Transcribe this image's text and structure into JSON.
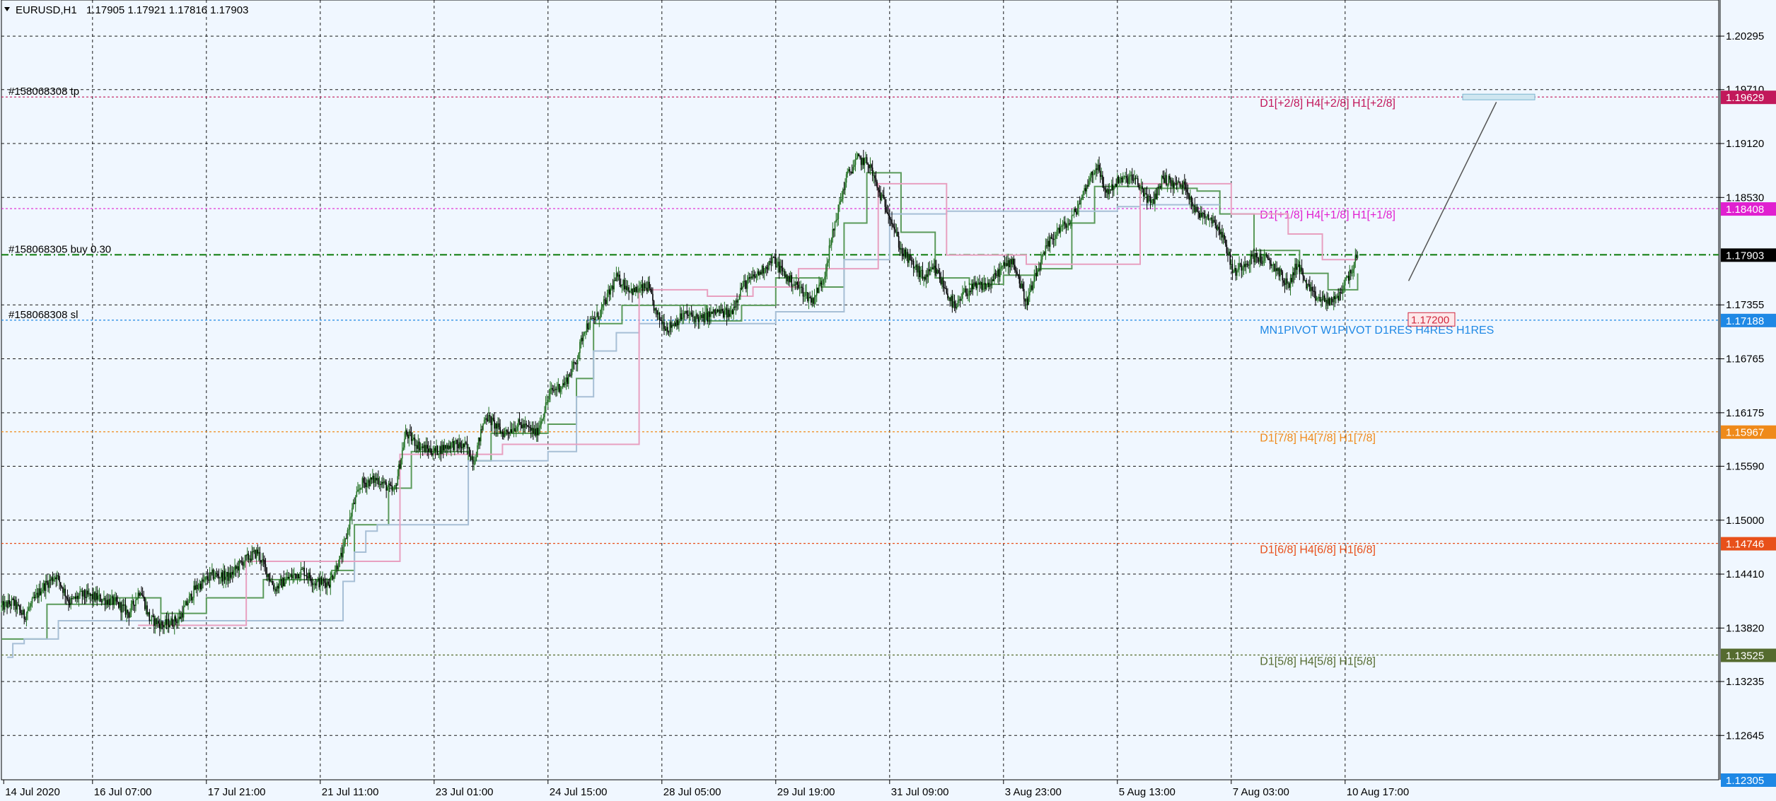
{
  "header": {
    "symbol": "EURUSD,H1",
    "ohlc": "1.17905 1.17921 1.17816 1.17903"
  },
  "colors": {
    "background": "#f0f7ff",
    "up_candle": "#1f6f1f",
    "down_candle": "#000000",
    "grid": "#000000",
    "axis_text": "#000000"
  },
  "chart_data": {
    "type": "candlestick",
    "symbol": "EURUSD",
    "timeframe": "H1",
    "ylim": [
      1.1216,
      1.2069
    ],
    "x_range": [
      0,
      1214
    ],
    "grid": true,
    "y_ticks": [
      "1.20295",
      "1.19710",
      "1.19120",
      "1.18530",
      "1.17355",
      "1.16765",
      "1.16175",
      "1.15590",
      "1.15000",
      "1.14410",
      "1.13820",
      "1.13235",
      "1.12645"
    ],
    "x_ticks": [
      {
        "x": 2,
        "label": "14 Jul 2020"
      },
      {
        "x": 80,
        "label": "16 Jul 07:00"
      },
      {
        "x": 180,
        "label": "17 Jul 21:00"
      },
      {
        "x": 280,
        "label": "21 Jul 11:00"
      },
      {
        "x": 380,
        "label": "23 Jul 01:00"
      },
      {
        "x": 480,
        "label": "24 Jul 15:00"
      },
      {
        "x": 580,
        "label": "28 Jul 05:00"
      },
      {
        "x": 680,
        "label": "29 Jul 19:00"
      },
      {
        "x": 780,
        "label": "31 Jul 09:00"
      },
      {
        "x": 880,
        "label": "3 Aug 23:00"
      },
      {
        "x": 980,
        "label": "5 Aug 13:00"
      },
      {
        "x": 1080,
        "label": "7 Aug 03:00"
      },
      {
        "x": 1180,
        "label": "10 Aug 17:00"
      }
    ],
    "close_path": [
      [
        0,
        1.1405
      ],
      [
        10,
        1.141
      ],
      [
        20,
        1.1395
      ],
      [
        35,
        1.1425
      ],
      [
        48,
        1.144
      ],
      [
        60,
        1.141
      ],
      [
        70,
        1.1418
      ],
      [
        85,
        1.1415
      ],
      [
        100,
        1.141
      ],
      [
        112,
        1.1398
      ],
      [
        122,
        1.1425
      ],
      [
        130,
        1.1392
      ],
      [
        142,
        1.1385
      ],
      [
        156,
        1.1392
      ],
      [
        170,
        1.1425
      ],
      [
        185,
        1.144
      ],
      [
        200,
        1.1438
      ],
      [
        212,
        1.1455
      ],
      [
        225,
        1.1465
      ],
      [
        240,
        1.1425
      ],
      [
        250,
        1.1435
      ],
      [
        265,
        1.1445
      ],
      [
        275,
        1.1432
      ],
      [
        288,
        1.1432
      ],
      [
        300,
        1.1465
      ],
      [
        308,
        1.1512
      ],
      [
        316,
        1.154
      ],
      [
        330,
        1.1545
      ],
      [
        345,
        1.153
      ],
      [
        355,
        1.1595
      ],
      [
        368,
        1.158
      ],
      [
        380,
        1.1575
      ],
      [
        395,
        1.1583
      ],
      [
        408,
        1.158
      ],
      [
        415,
        1.1565
      ],
      [
        425,
        1.1615
      ],
      [
        440,
        1.1595
      ],
      [
        455,
        1.1605
      ],
      [
        470,
        1.1595
      ],
      [
        482,
        1.164
      ],
      [
        495,
        1.165
      ],
      [
        505,
        1.1675
      ],
      [
        512,
        1.171
      ],
      [
        525,
        1.1725
      ],
      [
        540,
        1.1765
      ],
      [
        555,
        1.175
      ],
      [
        568,
        1.1755
      ],
      [
        575,
        1.1725
      ],
      [
        585,
        1.171
      ],
      [
        600,
        1.1725
      ],
      [
        615,
        1.172
      ],
      [
        628,
        1.1728
      ],
      [
        640,
        1.1725
      ],
      [
        650,
        1.1755
      ],
      [
        665,
        1.177
      ],
      [
        678,
        1.1785
      ],
      [
        690,
        1.1765
      ],
      [
        700,
        1.1755
      ],
      [
        712,
        1.174
      ],
      [
        722,
        1.1765
      ],
      [
        732,
        1.1825
      ],
      [
        742,
        1.1875
      ],
      [
        752,
        1.1895
      ],
      [
        762,
        1.189
      ],
      [
        770,
        1.186
      ],
      [
        780,
        1.1835
      ],
      [
        790,
        1.1795
      ],
      [
        800,
        1.178
      ],
      [
        810,
        1.1765
      ],
      [
        820,
        1.1775
      ],
      [
        828,
        1.1755
      ],
      [
        838,
        1.173
      ],
      [
        845,
        1.1748
      ],
      [
        855,
        1.1755
      ],
      [
        868,
        1.1758
      ],
      [
        878,
        1.1775
      ],
      [
        888,
        1.1785
      ],
      [
        900,
        1.1738
      ],
      [
        908,
        1.1765
      ],
      [
        918,
        1.1798
      ],
      [
        928,
        1.1818
      ],
      [
        938,
        1.1825
      ],
      [
        946,
        1.1845
      ],
      [
        954,
        1.187
      ],
      [
        962,
        1.1888
      ],
      [
        970,
        1.1858
      ],
      [
        980,
        1.187
      ],
      [
        992,
        1.1875
      ],
      [
        1000,
        1.1865
      ],
      [
        1010,
        1.1845
      ],
      [
        1020,
        1.1875
      ],
      [
        1028,
        1.1868
      ],
      [
        1040,
        1.1865
      ],
      [
        1050,
        1.1835
      ],
      [
        1058,
        1.1835
      ],
      [
        1068,
        1.1822
      ],
      [
        1075,
        1.1802
      ],
      [
        1082,
        1.177
      ],
      [
        1090,
        1.178
      ],
      [
        1100,
        1.1788
      ],
      [
        1110,
        1.1785
      ],
      [
        1120,
        1.1775
      ],
      [
        1130,
        1.1755
      ],
      [
        1138,
        1.1782
      ],
      [
        1145,
        1.176
      ],
      [
        1152,
        1.1745
      ],
      [
        1162,
        1.174
      ],
      [
        1172,
        1.174
      ],
      [
        1180,
        1.176
      ],
      [
        1186,
        1.1775
      ],
      [
        1191,
        1.179
      ]
    ],
    "indicators": [
      {
        "name": "green_trail",
        "color": "#5a9a5a",
        "points": [
          [
            0,
            1.137
          ],
          [
            40,
            1.1408
          ],
          [
            100,
            1.1415
          ],
          [
            140,
            1.1398
          ],
          [
            180,
            1.1415
          ],
          [
            230,
            1.1435
          ],
          [
            290,
            1.1445
          ],
          [
            310,
            1.1495
          ],
          [
            340,
            1.1535
          ],
          [
            360,
            1.1575
          ],
          [
            410,
            1.1565
          ],
          [
            430,
            1.1595
          ],
          [
            480,
            1.1605
          ],
          [
            505,
            1.1655
          ],
          [
            520,
            1.1715
          ],
          [
            545,
            1.1735
          ],
          [
            575,
            1.1735
          ],
          [
            620,
            1.1718
          ],
          [
            650,
            1.1735
          ],
          [
            680,
            1.1765
          ],
          [
            720,
            1.1755
          ],
          [
            740,
            1.1825
          ],
          [
            760,
            1.188
          ],
          [
            790,
            1.1815
          ],
          [
            820,
            1.1765
          ],
          [
            850,
            1.1758
          ],
          [
            880,
            1.1768
          ],
          [
            910,
            1.1775
          ],
          [
            940,
            1.1825
          ],
          [
            960,
            1.1865
          ],
          [
            1000,
            1.1863
          ],
          [
            1050,
            1.186
          ],
          [
            1070,
            1.1835
          ],
          [
            1100,
            1.1795
          ],
          [
            1140,
            1.177
          ],
          [
            1165,
            1.1752
          ],
          [
            1191,
            1.177
          ]
        ]
      },
      {
        "name": "blue_trail",
        "color": "#a7bfd6",
        "points": [
          [
            5,
            1.135
          ],
          [
            10,
            1.1365
          ],
          [
            20,
            1.137
          ],
          [
            50,
            1.139
          ],
          [
            300,
            1.1433
          ],
          [
            310,
            1.1465
          ],
          [
            320,
            1.1488
          ],
          [
            330,
            1.1495
          ],
          [
            410,
            1.1565
          ],
          [
            480,
            1.1575
          ],
          [
            505,
            1.1635
          ],
          [
            520,
            1.1685
          ],
          [
            540,
            1.1705
          ],
          [
            560,
            1.1715
          ],
          [
            680,
            1.1728
          ],
          [
            740,
            1.1785
          ],
          [
            780,
            1.1835
          ],
          [
            830,
            1.1838
          ],
          [
            980,
            1.1843
          ],
          [
            1000,
            1.1845
          ],
          [
            1070,
            1.1845
          ]
        ]
      },
      {
        "name": "pink_trail",
        "color": "#e8a0c0",
        "points": [
          [
            120,
            1.1385
          ],
          [
            170,
            1.1385
          ],
          [
            215,
            1.1455
          ],
          [
            350,
            1.1572
          ],
          [
            440,
            1.1583
          ],
          [
            560,
            1.1752
          ],
          [
            620,
            1.1745
          ],
          [
            660,
            1.1755
          ],
          [
            700,
            1.1775
          ],
          [
            770,
            1.1868
          ],
          [
            830,
            1.179
          ],
          [
            900,
            1.178
          ],
          [
            1000,
            1.1868
          ],
          [
            1080,
            1.1835
          ],
          [
            1120,
            1.1835
          ],
          [
            1130,
            1.1813
          ],
          [
            1150,
            1.1813
          ],
          [
            1160,
            1.1785
          ],
          [
            1191,
            1.1785
          ]
        ]
      }
    ],
    "levels": [
      {
        "price": 1.19629,
        "price_label": "1.19629",
        "label": "D1[+2/8] H4[+2/8] H1[+2/8]",
        "color": "#c2185b",
        "label_x": 1130,
        "left_text": "#158068308 tp"
      },
      {
        "price": 1.18408,
        "price_label": "1.18408",
        "label": "D1[+1/8] H4[+1/8] H1[+1/8]",
        "color": "#e020d0",
        "label_x": 1130
      },
      {
        "price": 1.17903,
        "price_label": "1.17903",
        "label": "",
        "color": "#0a7a0a",
        "style": "dashdot",
        "left_text": "#158068305 buy 0.30",
        "tag_color": "#000000"
      },
      {
        "price": 1.17188,
        "price_label": "1.17188",
        "label": "MN1PIVOT W1PIVOT D1RES H4RES H1RES",
        "color": "#1e88e5",
        "label_x": 1130,
        "left_text": "#158068308 sl"
      },
      {
        "price": 1.15967,
        "price_label": "1.15967",
        "label": "D1[7/8] H4[7/8] H1[7/8]",
        "color": "#ef8a1a",
        "label_x": 1130
      },
      {
        "price": 1.14746,
        "price_label": "1.14746",
        "label": "D1[6/8] H4[6/8] H1[6/8]",
        "color": "#e8501a",
        "label_x": 1130
      },
      {
        "price": 1.13525,
        "price_label": "1.13525",
        "label": "D1[5/8] H4[5/8] H1[5/8]",
        "color": "#556b2f",
        "label_x": 1130
      }
    ],
    "bottom_price": "1.12305",
    "order_box": {
      "label": "1.17200",
      "price": 1.172,
      "x": 1295
    },
    "target_box_price": 1.19629,
    "target_line": {
      "from": [
        1237,
        1.1795
      ],
      "to": [
        1288,
        1.1962
      ]
    }
  }
}
